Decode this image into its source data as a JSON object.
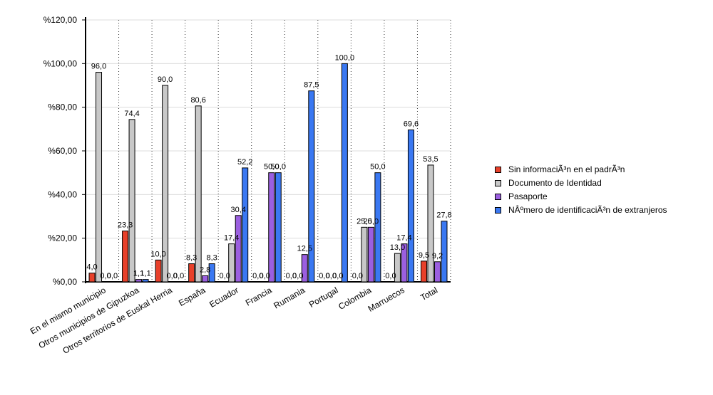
{
  "chart_data": {
    "type": "bar",
    "title": "",
    "xlabel": "",
    "ylabel": "",
    "ylim": [
      0,
      120
    ],
    "y_ticks": [
      "%0,00",
      "%20,00",
      "%40,00",
      "%60,00",
      "%80,00",
      "%100,00",
      "%120,00"
    ],
    "y_tick_values": [
      0,
      20,
      40,
      60,
      80,
      100,
      120
    ],
    "grid": "vertical dotted lines between categories",
    "legend_position": "right",
    "categories": [
      "En el mismo municipio",
      "Otros municipios de Gipuzkoa",
      "Otros territorios de Euskal Herria",
      "España",
      "Ecuador",
      "Francia",
      "Rumania",
      "Portugal",
      "Colombia",
      "Marruecos",
      "Total"
    ],
    "series": [
      {
        "name": "Sin informaciÃ³n en el padrÃ³n",
        "color": "#e8402a",
        "values": [
          4.0,
          23.3,
          10.0,
          8.3,
          0.0,
          0.0,
          0.0,
          0.0,
          0.0,
          0.0,
          9.5
        ],
        "labels": [
          "4,0",
          "23,3",
          "10,0",
          "8,3",
          "0,0",
          "0,0",
          "0,0",
          "0,0",
          "0,0",
          "0,0",
          "9,5"
        ]
      },
      {
        "name": "Documento de Identidad",
        "color": "#c8c8c8",
        "values": [
          96.0,
          74.4,
          90.0,
          80.6,
          17.4,
          0.0,
          0.0,
          0.0,
          25.0,
          13.0,
          53.5
        ],
        "labels": [
          "96,0",
          "74,4",
          "90,0",
          "80,6",
          "17,4",
          "0,0",
          "0,0",
          "0,0",
          "25,0",
          "13,0",
          "53,5"
        ]
      },
      {
        "name": "Pasaporte",
        "color": "#9b5fe0",
        "values": [
          0.0,
          1.1,
          0.0,
          2.8,
          30.4,
          50.0,
          12.5,
          0.0,
          25.0,
          17.4,
          9.2
        ],
        "labels": [
          "0,0",
          "1,1",
          "0,0",
          "2,8",
          "30,4",
          "50,0",
          "12,5",
          "0,0",
          "25,0",
          "17,4",
          "9,2"
        ]
      },
      {
        "name": "NÂºmero de identificaciÃ³n de extranjeros",
        "color": "#3a78f2",
        "values": [
          0.0,
          1.1,
          0.0,
          8.3,
          52.2,
          50.0,
          87.5,
          100.0,
          50.0,
          69.6,
          27.8
        ],
        "labels": [
          "0,0",
          "1,1",
          "0,0",
          "8,3",
          "52,2",
          "50,0",
          "87,5",
          "100,0",
          "50,0",
          "69,6",
          "27,8"
        ]
      }
    ]
  }
}
